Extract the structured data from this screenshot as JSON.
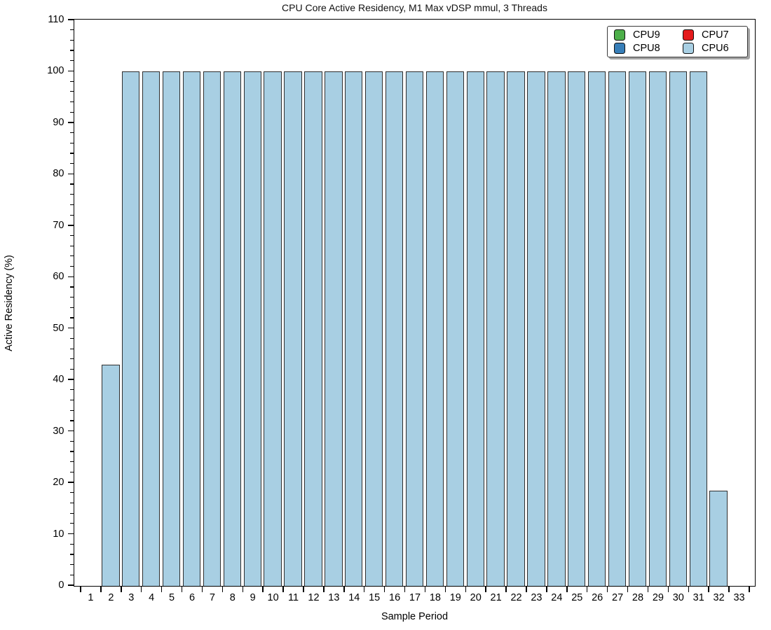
{
  "chart_data": {
    "type": "bar",
    "title": "CPU Core Active Residency, M1 Max vDSP mmul, 3 Threads",
    "xlabel": "Sample Period",
    "ylabel": "Active Residency (%)",
    "categories": [
      1,
      2,
      3,
      4,
      5,
      6,
      7,
      8,
      9,
      10,
      11,
      12,
      13,
      14,
      15,
      16,
      17,
      18,
      19,
      20,
      21,
      22,
      23,
      24,
      25,
      26,
      27,
      28,
      29,
      30,
      31,
      32,
      33
    ],
    "values": [
      0,
      43,
      100,
      100,
      100,
      100,
      100,
      100,
      100,
      100,
      100,
      100,
      100,
      100,
      100,
      100,
      100,
      100,
      100,
      100,
      100,
      100,
      100,
      100,
      100,
      100,
      100,
      100,
      100,
      100,
      100,
      18.5,
      0
    ],
    "ylim": [
      0,
      110
    ],
    "ytick_step": 10,
    "yminor_step": 2,
    "grid": false,
    "background_color": "#ffffff",
    "bar": {
      "fill": "#a8cfe3",
      "edge": "#2e2e2e"
    },
    "legend": {
      "position": "top-right",
      "columns": 2,
      "order": "column-major",
      "entries": [
        {
          "label": "CPU9",
          "color": "#4daf4a"
        },
        {
          "label": "CPU8",
          "color": "#377eb8"
        },
        {
          "label": "CPU7",
          "color": "#e41a1c"
        },
        {
          "label": "CPU6",
          "color": "#a8cfe3"
        }
      ]
    }
  }
}
